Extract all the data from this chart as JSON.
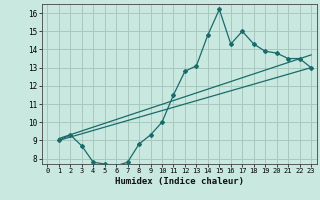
{
  "xlabel": "Humidex (Indice chaleur)",
  "bg_color": "#c8e8e0",
  "grid_color": "#a8c8c0",
  "line_color": "#1a6b6b",
  "xlim": [
    -0.5,
    23.5
  ],
  "ylim": [
    7.7,
    16.5
  ],
  "xticks": [
    0,
    1,
    2,
    3,
    4,
    5,
    6,
    7,
    8,
    9,
    10,
    11,
    12,
    13,
    14,
    15,
    16,
    17,
    18,
    19,
    20,
    21,
    22,
    23
  ],
  "yticks": [
    8,
    9,
    10,
    11,
    12,
    13,
    14,
    15,
    16
  ],
  "curve1_x": [
    1,
    2,
    3,
    4,
    5,
    6,
    7,
    8,
    9,
    10,
    11,
    12,
    13,
    14,
    15,
    16,
    17,
    18,
    19,
    20,
    21,
    22,
    23
  ],
  "curve1_y": [
    9.0,
    9.3,
    8.7,
    7.8,
    7.7,
    7.6,
    7.8,
    8.8,
    9.3,
    10.0,
    11.5,
    12.8,
    13.1,
    14.8,
    16.2,
    14.3,
    15.0,
    14.3,
    13.9,
    13.8,
    13.5,
    13.5,
    13.0
  ],
  "curve2_x": [
    1,
    23
  ],
  "curve2_y": [
    9.0,
    13.0
  ],
  "curve3_x": [
    1,
    23
  ],
  "curve3_y": [
    9.1,
    13.7
  ]
}
